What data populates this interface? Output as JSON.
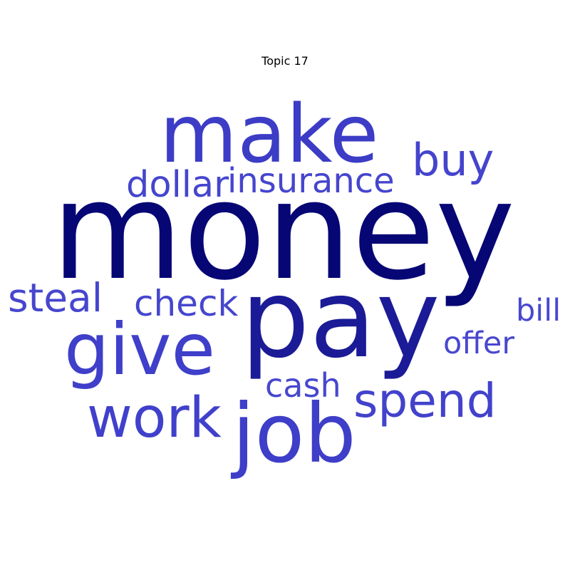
{
  "title": "Topic 17",
  "word_cloud": {
    "words": [
      {
        "text": "money",
        "color": "#060675"
      },
      {
        "text": "pay",
        "color": "#1b1b97"
      },
      {
        "text": "make",
        "color": "#3c3cc6"
      },
      {
        "text": "job",
        "color": "#3e3ec9"
      },
      {
        "text": "give",
        "color": "#3f3fca"
      },
      {
        "text": "work",
        "color": "#4040cc"
      },
      {
        "text": "spend",
        "color": "#4242cc"
      },
      {
        "text": "buy",
        "color": "#4444cd"
      },
      {
        "text": "dollar",
        "color": "#4545ce"
      },
      {
        "text": "insurance",
        "color": "#4545ce"
      },
      {
        "text": "steal",
        "color": "#4646ce"
      },
      {
        "text": "check",
        "color": "#4646ce"
      },
      {
        "text": "cash",
        "color": "#4747cf"
      },
      {
        "text": "bill",
        "color": "#4848cf"
      },
      {
        "text": "offer",
        "color": "#4848cf"
      }
    ]
  }
}
